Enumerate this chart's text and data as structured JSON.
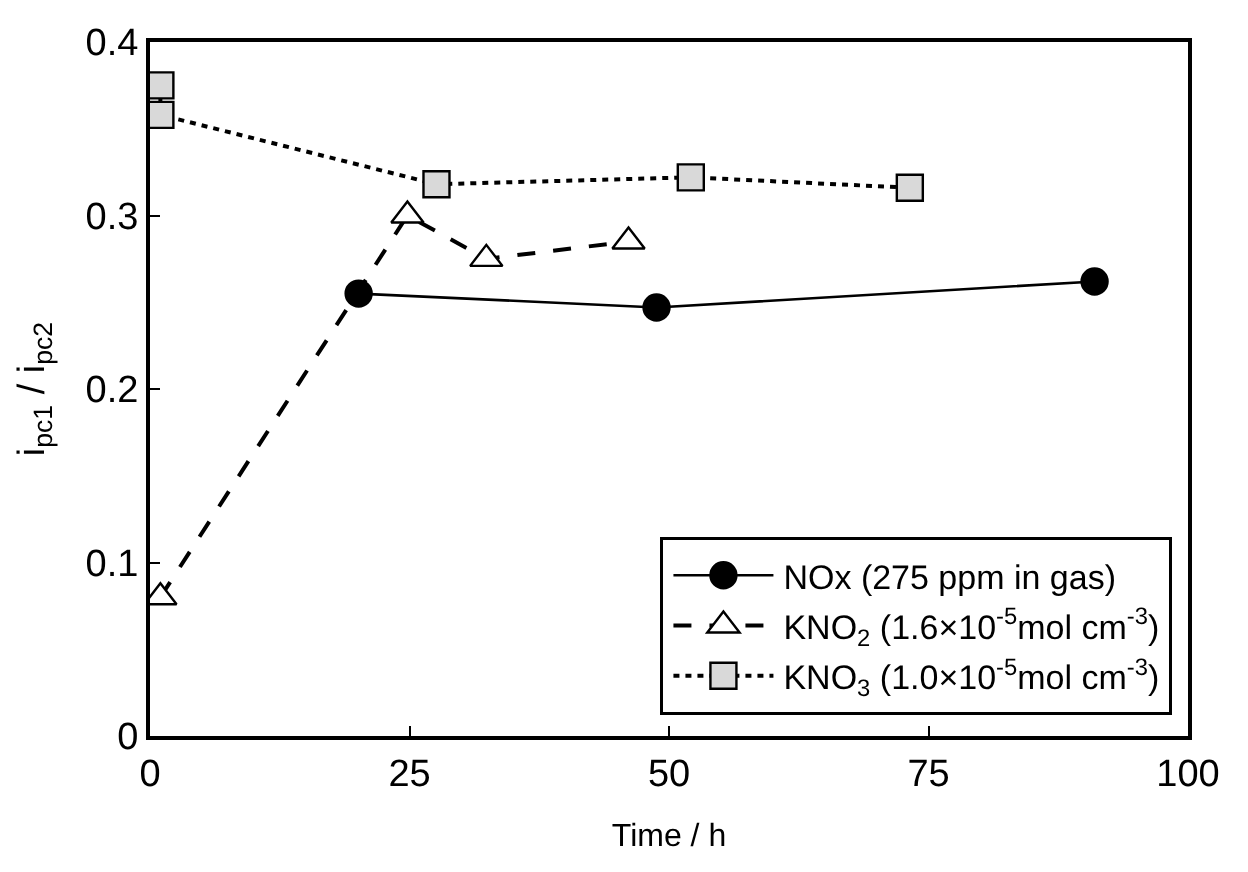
{
  "chart_data": {
    "type": "line",
    "xlabel": "Time / h",
    "ylabel": "i$_{pc1}$ / i$_{pc2}$",
    "xlim": [
      0,
      100
    ],
    "xticks": [
      0,
      25,
      50,
      75,
      100
    ],
    "ylim": [
      0,
      0.4
    ],
    "yticks": [
      0,
      0.1,
      0.2,
      0.3,
      0.4
    ],
    "legend": "bottom right",
    "series": [
      {
        "name": "NOx (275 ppm in gas)",
        "color": "#000000",
        "marker": "circle",
        "line_style": "solid",
        "x": [
          20.1,
          48.8,
          91.0
        ],
        "values": [
          0.255,
          0.247,
          0.262
        ]
      },
      {
        "name": "KNO$_{2}$ (1.6×10$^{-5}$mol cm$^{-3}$)",
        "color": "#000000",
        "marker": "triangle",
        "line_style": "dashed",
        "x": [
          1.0,
          24.8,
          32.4,
          46.1
        ],
        "values": [
          0.08,
          0.3,
          0.275,
          0.285
        ]
      },
      {
        "name": "KNO$_{3}$ (1.0×10$^{-5}$mol cm$^{-3}$)",
        "color": "#000000",
        "marker": "square",
        "line_style": "dotted",
        "x": [
          1.0,
          1.0,
          27.6,
          52.1,
          73.2
        ],
        "values": [
          0.375,
          0.358,
          0.318,
          0.322,
          0.316
        ]
      }
    ]
  }
}
